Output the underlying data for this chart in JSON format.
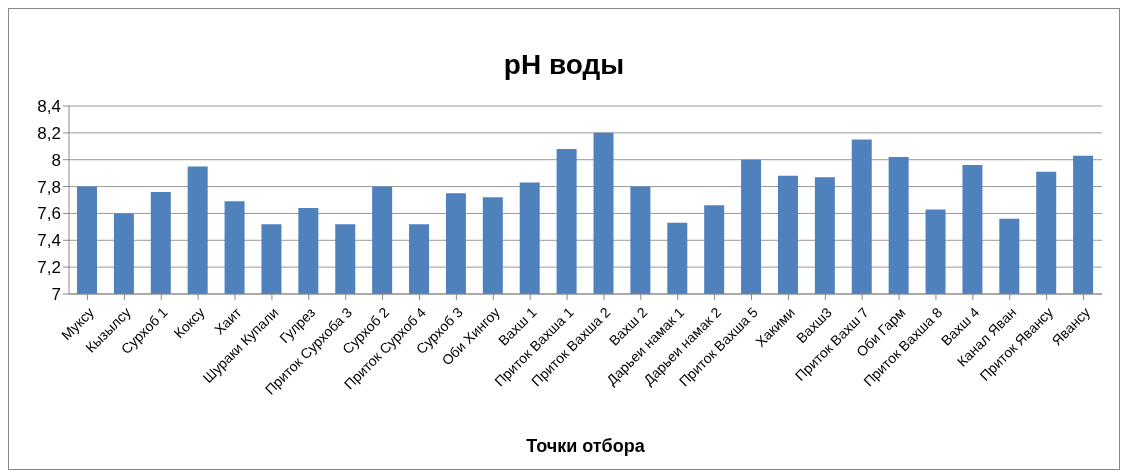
{
  "chart_data": {
    "type": "bar",
    "title": "pH воды",
    "xlabel": "Точки отбора",
    "categories": [
      "Муксу",
      "Кызылсу",
      "Сурхоб 1",
      "Коксу",
      "Хаит",
      "Шураки Купали",
      "Гулрез",
      "Приток Сурхоба 3",
      "Сурхоб 2",
      "Приток Сурхоб 4",
      "Сурхоб 3",
      "Оби Хингоу",
      "Вахш 1",
      "Приток Вахша 1",
      "Приток Вахша 2",
      "Вахш 2",
      "Дарьеи намак 1",
      "Дарьеи намак 2",
      "Приток Вахша 5",
      "Хакими",
      "Вахш3",
      "Приток Вахш 7",
      "Оби Гарм",
      "Приток Вахша 8",
      "Вахш 4",
      "Канал Яван",
      "Приток Явансу",
      "Явансу"
    ],
    "values": [
      7.8,
      7.6,
      7.76,
      7.95,
      7.69,
      7.52,
      7.64,
      7.52,
      7.8,
      7.52,
      7.75,
      7.72,
      7.83,
      8.08,
      8.2,
      7.8,
      7.53,
      7.66,
      8.0,
      7.88,
      7.87,
      8.15,
      8.02,
      7.63,
      7.96,
      7.56,
      7.91,
      8.03
    ],
    "color": "#4f81bd",
    "ylim": [
      7,
      8.4
    ],
    "yticks": [
      7,
      {
        "value": 7.2,
        "label": "7,2"
      },
      {
        "value": 7.4,
        "label": "7,4"
      },
      {
        "value": 7.6,
        "label": "7,6"
      },
      {
        "value": 7.8,
        "label": "7,8"
      },
      8,
      {
        "value": 8.2,
        "label": "8,2"
      },
      {
        "value": 8.4,
        "label": "8,4"
      }
    ],
    "grid": "y"
  }
}
